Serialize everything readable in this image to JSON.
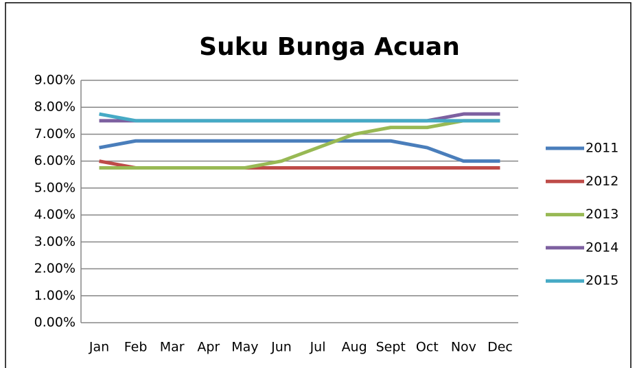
{
  "chart_data": {
    "type": "line",
    "title": "Suku Bunga Acuan",
    "categories": [
      "Jan",
      "Feb",
      "Mar",
      "Apr",
      "May",
      "Jun",
      "Jul",
      "Aug",
      "Sept",
      "Oct",
      "Nov",
      "Dec"
    ],
    "series": [
      {
        "name": "2011",
        "color": "#4a7ebb",
        "values": [
          6.5,
          6.75,
          6.75,
          6.75,
          6.75,
          6.75,
          6.75,
          6.75,
          6.75,
          6.5,
          6.0,
          6.0
        ]
      },
      {
        "name": "2012",
        "color": "#be4b48",
        "values": [
          6.0,
          5.75,
          5.75,
          5.75,
          5.75,
          5.75,
          5.75,
          5.75,
          5.75,
          5.75,
          5.75,
          5.75
        ]
      },
      {
        "name": "2013",
        "color": "#98b954",
        "values": [
          5.75,
          5.75,
          5.75,
          5.75,
          5.75,
          6.0,
          6.5,
          7.0,
          7.25,
          7.25,
          7.5,
          7.5
        ]
      },
      {
        "name": "2014",
        "color": "#7d60a0",
        "values": [
          7.5,
          7.5,
          7.5,
          7.5,
          7.5,
          7.5,
          7.5,
          7.5,
          7.5,
          7.5,
          7.75,
          7.75
        ]
      },
      {
        "name": "2015",
        "color": "#46aac5",
        "values": [
          7.75,
          7.5,
          7.5,
          7.5,
          7.5,
          7.5,
          7.5,
          7.5,
          7.5,
          7.5,
          7.5,
          7.5
        ]
      }
    ],
    "ylim": [
      0,
      9
    ],
    "yticks": [
      {
        "value": 0,
        "label": "0.00%"
      },
      {
        "value": 1,
        "label": "1.00%"
      },
      {
        "value": 2,
        "label": "2.00%"
      },
      {
        "value": 3,
        "label": "3.00%"
      },
      {
        "value": 4,
        "label": "4.00%"
      },
      {
        "value": 5,
        "label": "5.00%"
      },
      {
        "value": 6,
        "label": "6.00%"
      },
      {
        "value": 7,
        "label": "7.00%"
      },
      {
        "value": 8,
        "label": "8.00%"
      },
      {
        "value": 9,
        "label": "9.00%"
      }
    ],
    "grid": true,
    "legend": "right"
  }
}
